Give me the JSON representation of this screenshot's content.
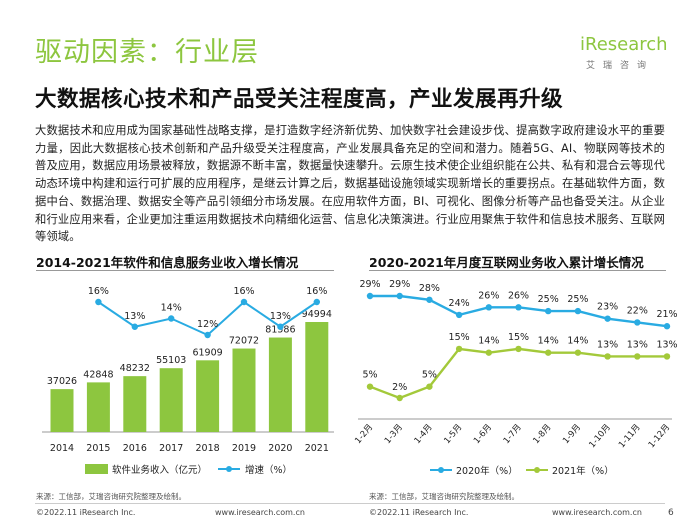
{
  "header": {
    "title": "驱动因素：行业层",
    "subtitle": "大数据核心技术和产品受关注程度高，产业发展再升级"
  },
  "logo": {
    "brand": "iResearch",
    "sub": "艾瑞咨询"
  },
  "body_text": "大数据技术和应用成为国家基础性战略支撑，是打造数字经济新优势、加快数字社会建设步伐、提高数字政府建设水平的重要力量，因此大数据核心技术创新和产品升级受关注程度高，产业发展具备充足的空间和潜力。随着5G、AI、物联网等技术的普及应用，数据应用场景被释放，数据源不断丰富，数据量快速攀升。云原生技术使企业组织能在公共、私有和混合云等现代动态环境中构建和运行可扩展的应用程序，是继云计算之后，数据基础设施领域实现新增长的重要拐点。在基础软件方面，数据中台、数据治理、数据安全等产品引领细分市场发展。在应用软件方面，BI、可视化、图像分析等产品也备受关注。从企业和行业应用来看，企业更加注重运用数据技术向精细化运营、信息化决策演进。行业应用聚焦于软件和信息技术服务、互联网等领域。",
  "chart_data": [
    {
      "type": "bar",
      "title": "2014-2021年软件和信息服务业收入增长情况",
      "categories": [
        "2014",
        "2015",
        "2016",
        "2017",
        "2018",
        "2019",
        "2020",
        "2021"
      ],
      "series": [
        {
          "name": "软件业务收入（亿元）",
          "type": "bar",
          "values": [
            37026,
            42848,
            48232,
            55103,
            61909,
            72072,
            81586,
            94994
          ],
          "color": "#8dc63f"
        },
        {
          "name": "增速（%）",
          "type": "line",
          "values": [
            null,
            16,
            13,
            14,
            12,
            16,
            13,
            16
          ],
          "labels": [
            "",
            "16%",
            "13%",
            "14%",
            "12%",
            "16%",
            "13%",
            "16%"
          ],
          "color": "#29abe2"
        }
      ],
      "source": "来源：工信部，艾瑞咨询研究院整理及绘制。"
    },
    {
      "type": "line",
      "title": "2020-2021年月度互联网业务收入累计增长情况",
      "categories": [
        "1-2月",
        "1-3月",
        "1-4月",
        "1-5月",
        "1-6月",
        "1-7月",
        "1-8月",
        "1-9月",
        "1-10月",
        "1-11月",
        "1-12月"
      ],
      "series": [
        {
          "name": "2020年（%）",
          "values": [
            29,
            29,
            28,
            24,
            26,
            26,
            25,
            25,
            23,
            22,
            21
          ],
          "labels": [
            "29%",
            "29%",
            "28%",
            "24%",
            "26%",
            "26%",
            "25%",
            "25%",
            "23%",
            "22%",
            "21%"
          ],
          "color": "#29abe2"
        },
        {
          "name": "2021年（%）",
          "values": [
            5,
            2,
            5,
            15,
            14,
            15,
            14,
            14,
            13,
            13,
            13
          ],
          "labels": [
            "5%",
            "2%",
            "5%",
            "15%",
            "14%",
            "15%",
            "14%",
            "14%",
            "13%",
            "13%",
            "13%"
          ],
          "color": "#a3c93a"
        }
      ],
      "source": "来源：工信部，艾瑞咨询研究院整理及绘制。"
    }
  ],
  "footer": {
    "copyright_left": "©2022.11 iResearch Inc.",
    "url_left": "www.iresearch.com.cn",
    "copyright_right": "©2022.11 iResearch Inc.",
    "url_right": "www.iresearch.com.cn",
    "page": "6"
  }
}
